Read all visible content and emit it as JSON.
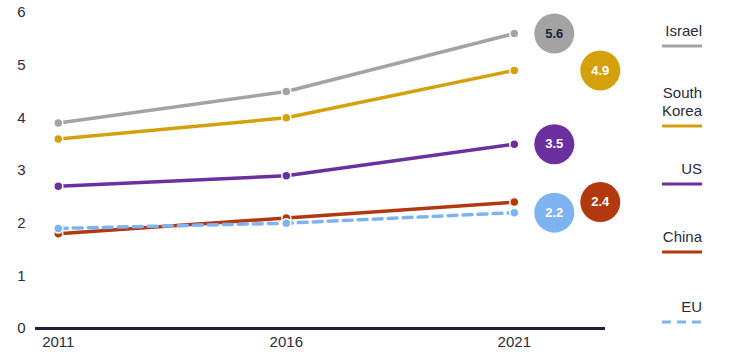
{
  "chart_data": {
    "type": "line",
    "x": [
      2011,
      2016,
      2021
    ],
    "xlim": [
      2010.5,
      2023
    ],
    "xticks": [
      2011,
      2016,
      2021
    ],
    "ylim": [
      0,
      6
    ],
    "yticks": [
      0,
      1,
      2,
      3,
      4,
      5,
      6
    ],
    "grid": false,
    "legend": "right",
    "data_labels": true,
    "series": [
      {
        "name": "Israel",
        "color": "#a3a3a3",
        "line_style": "solid",
        "marker": "circle",
        "values": [
          3.9,
          4.5,
          5.6
        ]
      },
      {
        "name": "South Korea",
        "color": "#d4a00c",
        "line_style": "solid",
        "marker": "circle",
        "values": [
          3.6,
          4.0,
          4.9
        ]
      },
      {
        "name": "US",
        "color": "#6b2fa0",
        "line_style": "solid",
        "marker": "circle",
        "values": [
          2.7,
          2.9,
          3.5
        ]
      },
      {
        "name": "China",
        "color": "#b2380f",
        "line_style": "solid",
        "marker": "circle",
        "values": [
          1.8,
          2.1,
          2.4
        ]
      },
      {
        "name": "EU",
        "color": "#7fb3ef",
        "line_style": "dashed",
        "marker": "circle",
        "values": [
          1.9,
          2.0,
          2.2
        ]
      }
    ]
  }
}
